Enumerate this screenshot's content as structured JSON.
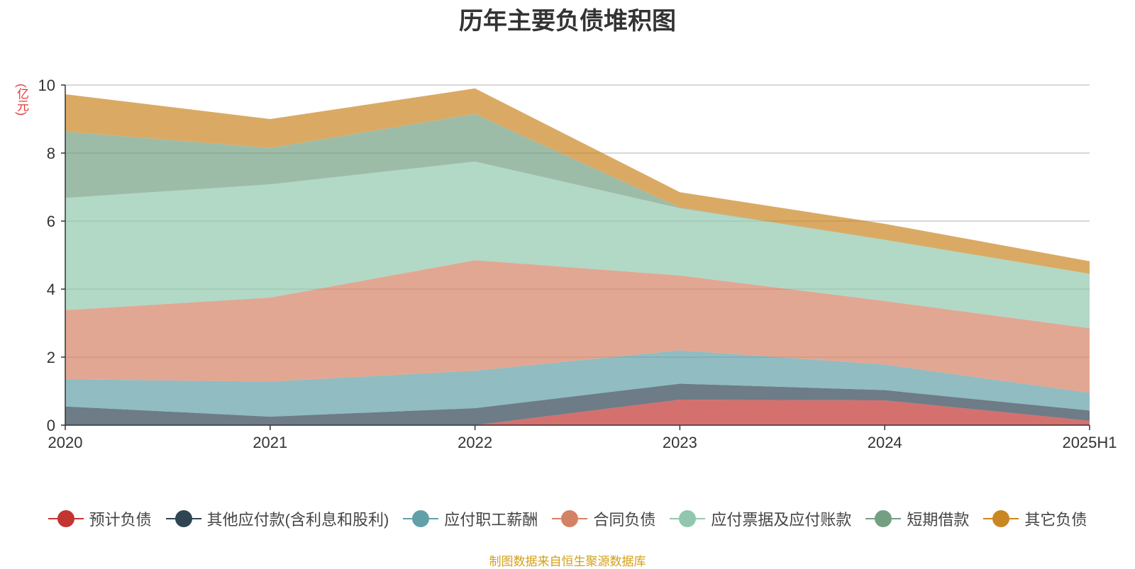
{
  "chart_data": {
    "type": "area",
    "stacked": true,
    "title": "历年主要负债堆积图",
    "unit_label": "(亿元)",
    "categories": [
      "2020",
      "2021",
      "2022",
      "2023",
      "2024",
      "2025H1"
    ],
    "y_ticks": [
      "0",
      "2",
      "4",
      "6",
      "8",
      "10"
    ],
    "ylim": [
      0,
      10
    ],
    "grid": true,
    "legend_position": "bottom",
    "series": [
      {
        "name": "预计负债",
        "color": "#c23531",
        "values": [
          0,
          0,
          0,
          0.75,
          0.73,
          0.13
        ]
      },
      {
        "name": "其他应付款(含利息和股利)",
        "color": "#2f4554",
        "values": [
          0.55,
          0.25,
          0.5,
          0.47,
          0.3,
          0.3
        ]
      },
      {
        "name": "应付职工薪酬",
        "color": "#61a0a8",
        "values": [
          0.8,
          1.03,
          1.1,
          0.98,
          0.75,
          0.52
        ]
      },
      {
        "name": "合同负债",
        "color": "#d48265",
        "values": [
          2.03,
          2.47,
          3.25,
          2.2,
          1.87,
          1.9
        ]
      },
      {
        "name": "应付票据及应付账款",
        "color": "#91c7ae",
        "values": [
          3.3,
          3.33,
          2.9,
          1.98,
          1.8,
          1.6
        ]
      },
      {
        "name": "短期借款",
        "color": "#749f83",
        "values": [
          1.95,
          1.07,
          1.4,
          0.02,
          0,
          0
        ]
      },
      {
        "name": "其它负债",
        "color": "#ca8622",
        "values": [
          1.1,
          0.85,
          0.75,
          0.45,
          0.47,
          0.37
        ]
      }
    ]
  },
  "source_note": "制图数据来自恒生聚源数据库"
}
